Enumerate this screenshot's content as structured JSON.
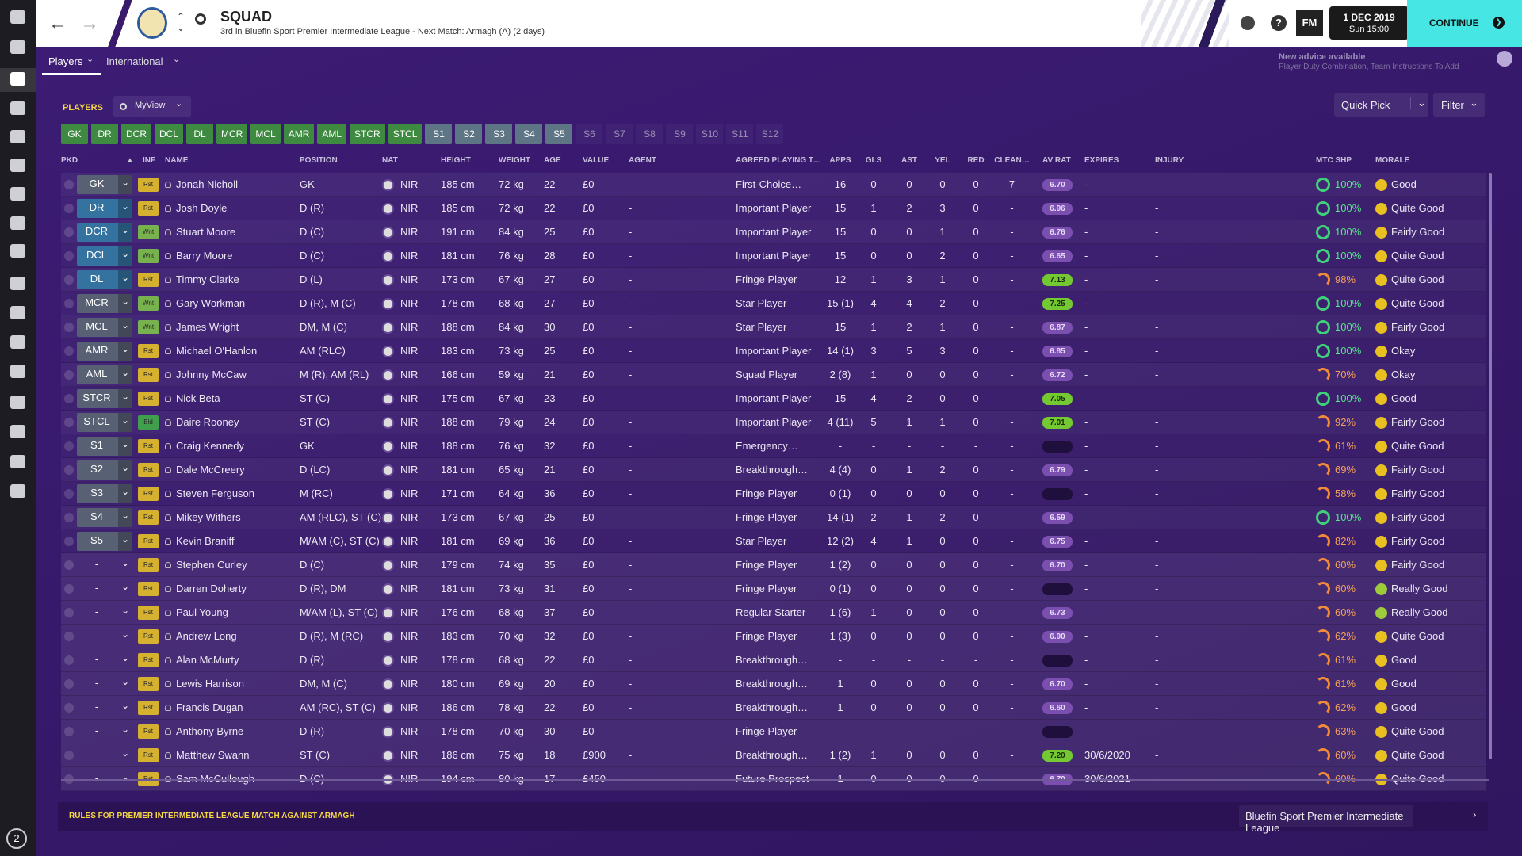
{
  "header": {
    "title": "SQUAD",
    "subtitle": "3rd in Bluefin Sport Premier Intermediate League - Next Match: Armagh (A) (2 days)",
    "logo": "FM",
    "date": "1 DEC 2019",
    "time": "Sun 15:00",
    "continue": "CONTINUE"
  },
  "tabs": [
    "Players",
    "International"
  ],
  "advice": {
    "title": "New advice available",
    "detail": "Player Duty Combination, Team Instructions To Add"
  },
  "toolbar": {
    "label": "PLAYERS",
    "view": "MyView",
    "quick_pick": "Quick Pick",
    "filter": "Filter"
  },
  "selections": [
    "GK",
    "DR",
    "DCR",
    "DCL",
    "DL",
    "MCR",
    "MCL",
    "AMR",
    "AML",
    "STCR",
    "STCL",
    "S1",
    "S2",
    "S3",
    "S4",
    "S5",
    "S6",
    "S7",
    "S8",
    "S9",
    "S10",
    "S11",
    "S12"
  ],
  "table": {
    "headers": [
      "PKD",
      "INF",
      "NAME",
      "POSITION",
      "NAT",
      "HEIGHT",
      "WEIGHT",
      "AGE",
      "VALUE",
      "AGENT",
      "AGREED PLAYING T…",
      "APPS",
      "GLS",
      "AST",
      "YEL",
      "RED",
      "CLEAN…",
      "AV RAT",
      "EXPIRES",
      "INJURY",
      "MTC SHP",
      "MORALE"
    ],
    "rows": [
      [
        "GK",
        "Rst",
        "Jonah Nicholl",
        "GK",
        "NIR",
        "185 cm",
        "72 kg",
        "22",
        "£0",
        "-",
        "First-Choice…",
        "16",
        "0",
        "0",
        "0",
        "0",
        "7",
        "6.70",
        "-",
        "-",
        "100%",
        "Good"
      ],
      [
        "DR",
        "Rst",
        "Josh Doyle",
        "D (R)",
        "NIR",
        "185 cm",
        "72 kg",
        "22",
        "£0",
        "-",
        "Important Player",
        "15",
        "1",
        "2",
        "3",
        "0",
        "-",
        "6.96",
        "-",
        "-",
        "100%",
        "Quite Good"
      ],
      [
        "DCR",
        "Wnt",
        "Stuart Moore",
        "D (C)",
        "NIR",
        "191 cm",
        "84 kg",
        "25",
        "£0",
        "-",
        "Important Player",
        "15",
        "0",
        "0",
        "1",
        "0",
        "-",
        "6.76",
        "-",
        "-",
        "100%",
        "Fairly Good"
      ],
      [
        "DCL",
        "Wnt",
        "Barry Moore",
        "D (C)",
        "NIR",
        "181 cm",
        "76 kg",
        "28",
        "£0",
        "-",
        "Important Player",
        "15",
        "0",
        "0",
        "2",
        "0",
        "-",
        "6.65",
        "-",
        "-",
        "100%",
        "Quite Good"
      ],
      [
        "DL",
        "Rst",
        "Timmy Clarke",
        "D (L)",
        "NIR",
        "173 cm",
        "67 kg",
        "27",
        "£0",
        "-",
        "Fringe Player",
        "12",
        "1",
        "3",
        "1",
        "0",
        "-",
        "7.13",
        "-",
        "-",
        "98%",
        "Quite Good"
      ],
      [
        "MCR",
        "Wnt",
        "Gary Workman",
        "D (R), M (C)",
        "NIR",
        "178 cm",
        "68 kg",
        "27",
        "£0",
        "-",
        "Star Player",
        "15 (1)",
        "4",
        "4",
        "2",
        "0",
        "-",
        "7.25",
        "-",
        "-",
        "100%",
        "Quite Good"
      ],
      [
        "MCL",
        "Wnt",
        "James Wright",
        "DM, M (C)",
        "NIR",
        "188 cm",
        "84 kg",
        "30",
        "£0",
        "-",
        "Star Player",
        "15",
        "1",
        "2",
        "1",
        "0",
        "-",
        "6.87",
        "-",
        "-",
        "100%",
        "Fairly Good"
      ],
      [
        "AMR",
        "Rst",
        "Michael O'Hanlon",
        "AM (RLC)",
        "NIR",
        "183 cm",
        "73 kg",
        "25",
        "£0",
        "-",
        "Important Player",
        "14 (1)",
        "3",
        "5",
        "3",
        "0",
        "-",
        "6.85",
        "-",
        "-",
        "100%",
        "Okay"
      ],
      [
        "AML",
        "Rst",
        "Johnny McCaw",
        "M (R), AM (RL)",
        "NIR",
        "166 cm",
        "59 kg",
        "21",
        "£0",
        "-",
        "Squad Player",
        "2 (8)",
        "1",
        "0",
        "0",
        "0",
        "-",
        "6.72",
        "-",
        "-",
        "70%",
        "Okay"
      ],
      [
        "STCR",
        "Rst",
        "Nick Beta",
        "ST (C)",
        "NIR",
        "175 cm",
        "67 kg",
        "23",
        "£0",
        "-",
        "Important Player",
        "15",
        "4",
        "2",
        "0",
        "0",
        "-",
        "7.05",
        "-",
        "-",
        "100%",
        "Good"
      ],
      [
        "STCL",
        "Bld",
        "Daire Rooney",
        "ST (C)",
        "NIR",
        "188 cm",
        "79 kg",
        "24",
        "£0",
        "-",
        "Important Player",
        "4 (11)",
        "5",
        "1",
        "1",
        "0",
        "-",
        "7.01",
        "-",
        "-",
        "92%",
        "Fairly Good"
      ],
      [
        "S1",
        "Rst",
        "Craig Kennedy",
        "GK",
        "NIR",
        "188 cm",
        "76 kg",
        "32",
        "£0",
        "-",
        "Emergency…",
        "-",
        "-",
        "-",
        "-",
        "-",
        "-",
        null,
        "-",
        "-",
        "61%",
        "Quite Good"
      ],
      [
        "S2",
        "Rst",
        "Dale McCreery",
        "D (LC)",
        "NIR",
        "181 cm",
        "65 kg",
        "21",
        "£0",
        "-",
        "Breakthrough…",
        "4 (4)",
        "0",
        "1",
        "2",
        "0",
        "-",
        "6.79",
        "-",
        "-",
        "69%",
        "Fairly Good"
      ],
      [
        "S3",
        "Rst",
        "Steven Ferguson",
        "M (RC)",
        "NIR",
        "171 cm",
        "64 kg",
        "36",
        "£0",
        "-",
        "Fringe Player",
        "0 (1)",
        "0",
        "0",
        "0",
        "0",
        "-",
        null,
        "-",
        "-",
        "58%",
        "Fairly Good"
      ],
      [
        "S4",
        "Rst",
        "Mikey Withers",
        "AM (RLC), ST (C)",
        "NIR",
        "173 cm",
        "67 kg",
        "25",
        "£0",
        "-",
        "Fringe Player",
        "14 (1)",
        "2",
        "1",
        "2",
        "0",
        "-",
        "6.59",
        "-",
        "-",
        "100%",
        "Fairly Good"
      ],
      [
        "S5",
        "Rst",
        "Kevin Braniff",
        "M/AM (C), ST (C)",
        "NIR",
        "181 cm",
        "69 kg",
        "36",
        "£0",
        "-",
        "Star Player",
        "12 (2)",
        "4",
        "1",
        "0",
        "0",
        "-",
        "6.75",
        "-",
        "-",
        "82%",
        "Fairly Good"
      ],
      [
        "-",
        "Rst",
        "Stephen Curley",
        "D (C)",
        "NIR",
        "179 cm",
        "74 kg",
        "35",
        "£0",
        "-",
        "Fringe Player",
        "1 (2)",
        "0",
        "0",
        "0",
        "0",
        "-",
        "6.70",
        "-",
        "-",
        "60%",
        "Fairly Good"
      ],
      [
        "-",
        "Rst",
        "Darren Doherty",
        "D (R), DM",
        "NIR",
        "181 cm",
        "73 kg",
        "31",
        "£0",
        "-",
        "Fringe Player",
        "0 (1)",
        "0",
        "0",
        "0",
        "0",
        "-",
        null,
        "-",
        "-",
        "60%",
        "Really Good"
      ],
      [
        "-",
        "Rst",
        "Paul Young",
        "M/AM (L), ST (C)",
        "NIR",
        "176 cm",
        "68 kg",
        "37",
        "£0",
        "-",
        "Regular Starter",
        "1 (6)",
        "1",
        "0",
        "0",
        "0",
        "-",
        "6.73",
        "-",
        "-",
        "60%",
        "Really Good"
      ],
      [
        "-",
        "Rst",
        "Andrew Long",
        "D (R), M (RC)",
        "NIR",
        "183 cm",
        "70 kg",
        "32",
        "£0",
        "-",
        "Fringe Player",
        "1 (3)",
        "0",
        "0",
        "0",
        "0",
        "-",
        "6.90",
        "-",
        "-",
        "62%",
        "Quite Good"
      ],
      [
        "-",
        "Rst",
        "Alan McMurty",
        "D (R)",
        "NIR",
        "178 cm",
        "68 kg",
        "22",
        "£0",
        "-",
        "Breakthrough…",
        "-",
        "-",
        "-",
        "-",
        "-",
        "-",
        null,
        "-",
        "-",
        "61%",
        "Good"
      ],
      [
        "-",
        "Rst",
        "Lewis Harrison",
        "DM, M (C)",
        "NIR",
        "180 cm",
        "69 kg",
        "20",
        "£0",
        "-",
        "Breakthrough…",
        "1",
        "0",
        "0",
        "0",
        "0",
        "-",
        "6.70",
        "-",
        "-",
        "61%",
        "Good"
      ],
      [
        "-",
        "Rst",
        "Francis Dugan",
        "AM (RC), ST (C)",
        "NIR",
        "186 cm",
        "78 kg",
        "22",
        "£0",
        "-",
        "Breakthrough…",
        "1",
        "0",
        "0",
        "0",
        "0",
        "-",
        "6.60",
        "-",
        "-",
        "62%",
        "Good"
      ],
      [
        "-",
        "Rst",
        "Anthony Byrne",
        "D (R)",
        "NIR",
        "178 cm",
        "70 kg",
        "30",
        "£0",
        "-",
        "Fringe Player",
        "-",
        "-",
        "-",
        "-",
        "-",
        "-",
        null,
        "-",
        "-",
        "63%",
        "Quite Good"
      ],
      [
        "-",
        "Rst",
        "Matthew Swann",
        "ST (C)",
        "NIR",
        "186 cm",
        "75 kg",
        "18",
        "£900",
        "-",
        "Breakthrough…",
        "1 (2)",
        "1",
        "0",
        "0",
        "0",
        "-",
        "7.20",
        "30/6/2020",
        "-",
        "60%",
        "Quite Good"
      ],
      [
        "-",
        "Rst",
        "Sam McCullough",
        "D (C)",
        "NIR",
        "194 cm",
        "80 kg",
        "17",
        "£450",
        "-",
        "Future Prospect",
        "1",
        "0",
        "0",
        "0",
        "0",
        "-",
        "6.70",
        "30/6/2021",
        "-",
        "60%",
        "Quite Good"
      ]
    ]
  },
  "footer": {
    "rules": "RULES FOR PREMIER INTERMEDIATE LEAGUE MATCH AGAINST ARMAGH",
    "competition": "Bluefin Sport Premier Intermediate League"
  },
  "sidebar": {
    "badge": "2"
  }
}
